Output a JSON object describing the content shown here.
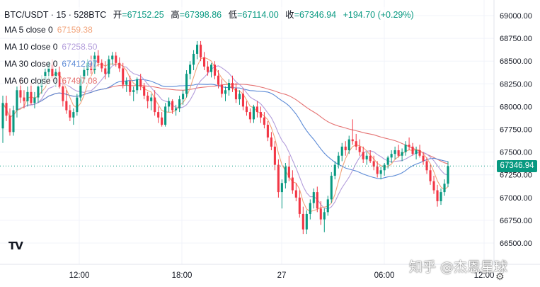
{
  "header": {
    "symbol": "BTC/USDT · 15 · 528BTC",
    "open_label": "开",
    "open_value": "=67152.25",
    "high_label": "高",
    "high_value": "=67398.86",
    "low_label": "低",
    "low_value": "=67114.00",
    "close_label": "收",
    "close_value": "=67346.94",
    "change": "+194.70 (+0.29%)"
  },
  "indicators": [
    {
      "name": "MA 5 close 0",
      "value": "67159.38",
      "color": "#f2a37a"
    },
    {
      "name": "MA 10 close 0",
      "value": "67258.50",
      "color": "#b39ddb"
    },
    {
      "name": "MA 30 close 0",
      "value": "67412.97",
      "color": "#5b8ad6"
    },
    {
      "name": "MA 60 close 0",
      "value": "67497.08",
      "color": "#e57373"
    }
  ],
  "last_price": "67346.94",
  "logo": "TV",
  "watermark": "知乎 @杰恩星球",
  "settings_icon": "gear-icon",
  "colors": {
    "up": "#089981",
    "down": "#f23645",
    "last_price_line": "#089981"
  },
  "chart_data": {
    "type": "candlestick",
    "ylim": [
      66450,
      69100
    ],
    "y_ticks": [
      "69000.00",
      "68750.00",
      "68500.00",
      "68250.00",
      "68000.00",
      "67750.00",
      "67500.00",
      "67250.00",
      "67000.00",
      "66750.00",
      "66500.00"
    ],
    "x_ticks": [
      "12:00",
      "18:00",
      "27",
      "06:00",
      "12:00"
    ],
    "grid": true,
    "candles": [
      [
        67760,
        68120,
        67600,
        68040
      ],
      [
        68040,
        68120,
        67840,
        67900
      ],
      [
        67900,
        67980,
        67680,
        67720
      ],
      [
        67720,
        68010,
        67680,
        67960
      ],
      [
        67960,
        68220,
        67880,
        68180
      ],
      [
        68180,
        68310,
        68040,
        68100
      ],
      [
        68100,
        68180,
        67980,
        68060
      ],
      [
        68060,
        68220,
        68000,
        68160
      ],
      [
        68160,
        68260,
        68020,
        68040
      ],
      [
        68040,
        68160,
        67980,
        68100
      ],
      [
        68100,
        68260,
        68040,
        68220
      ],
      [
        68220,
        68340,
        68140,
        68300
      ],
      [
        68300,
        68420,
        68240,
        68380
      ],
      [
        68380,
        68500,
        68300,
        68460
      ],
      [
        68460,
        68520,
        68280,
        68320
      ],
      [
        68320,
        68420,
        68220,
        68380
      ],
      [
        68380,
        68440,
        68200,
        68220
      ],
      [
        68220,
        68300,
        68000,
        68060
      ],
      [
        68060,
        68180,
        67920,
        67960
      ],
      [
        67960,
        68020,
        67840,
        67880
      ],
      [
        67880,
        67980,
        67800,
        67940
      ],
      [
        67940,
        68140,
        67900,
        68100
      ],
      [
        68100,
        68340,
        68060,
        68300
      ],
      [
        68300,
        68440,
        68260,
        68400
      ],
      [
        68400,
        68520,
        68340,
        68480
      ],
      [
        68480,
        68560,
        68360,
        68400
      ],
      [
        68400,
        68600,
        68360,
        68560
      ],
      [
        68560,
        68620,
        68440,
        68480
      ],
      [
        68480,
        68520,
        68380,
        68420
      ],
      [
        68420,
        68500,
        68300,
        68360
      ],
      [
        68360,
        68560,
        68320,
        68520
      ],
      [
        68520,
        68600,
        68460,
        68560
      ],
      [
        68560,
        68600,
        68440,
        68480
      ],
      [
        68480,
        68540,
        68380,
        68420
      ],
      [
        68420,
        68480,
        68200,
        68240
      ],
      [
        68240,
        68320,
        68160,
        68280
      ],
      [
        68280,
        68340,
        68120,
        68160
      ],
      [
        68160,
        68220,
        68060,
        68180
      ],
      [
        68180,
        68320,
        68140,
        68300
      ],
      [
        68300,
        68360,
        68180,
        68220
      ],
      [
        68220,
        68260,
        68080,
        68120
      ],
      [
        68120,
        68160,
        67980,
        68060
      ],
      [
        68060,
        68140,
        67960,
        68100
      ],
      [
        68100,
        68180,
        67900,
        67940
      ],
      [
        67940,
        68000,
        67820,
        67880
      ],
      [
        67880,
        67940,
        67780,
        67800
      ],
      [
        67800,
        68040,
        67780,
        68000
      ],
      [
        68000,
        68100,
        67940,
        68060
      ],
      [
        68060,
        68080,
        67920,
        67960
      ],
      [
        67960,
        68020,
        67900,
        67980
      ],
      [
        67980,
        68120,
        67940,
        68080
      ],
      [
        68080,
        68180,
        68020,
        68140
      ],
      [
        68140,
        68400,
        68100,
        68360
      ],
      [
        68360,
        68500,
        68300,
        68460
      ],
      [
        68460,
        68620,
        68400,
        68580
      ],
      [
        68580,
        68720,
        68520,
        68680
      ],
      [
        68680,
        68720,
        68500,
        68540
      ],
      [
        68540,
        68600,
        68400,
        68440
      ],
      [
        68440,
        68500,
        68340,
        68380
      ],
      [
        68380,
        68480,
        68320,
        68460
      ],
      [
        68460,
        68500,
        68300,
        68340
      ],
      [
        68340,
        68400,
        68200,
        68240
      ],
      [
        68240,
        68300,
        68100,
        68140
      ],
      [
        68140,
        68220,
        68060,
        68180
      ],
      [
        68180,
        68300,
        68120,
        68260
      ],
      [
        68260,
        68340,
        68160,
        68200
      ],
      [
        68200,
        68260,
        68040,
        68080
      ],
      [
        68080,
        68180,
        68020,
        68140
      ],
      [
        68140,
        68200,
        67960,
        68000
      ],
      [
        68000,
        68060,
        67900,
        67940
      ],
      [
        67940,
        67980,
        67820,
        67860
      ],
      [
        67860,
        68020,
        67820,
        68000
      ],
      [
        68000,
        68060,
        67880,
        67940
      ],
      [
        67940,
        68000,
        67820,
        67880
      ],
      [
        67880,
        67940,
        67760,
        67800
      ],
      [
        67800,
        67840,
        67620,
        67660
      ],
      [
        67660,
        67720,
        67520,
        67560
      ],
      [
        67560,
        67620,
        67300,
        67360
      ],
      [
        67360,
        67420,
        67000,
        67060
      ],
      [
        67060,
        67200,
        66880,
        67160
      ],
      [
        67160,
        67380,
        67100,
        67340
      ],
      [
        67340,
        67460,
        67180,
        67220
      ],
      [
        67220,
        67300,
        67040,
        67080
      ],
      [
        67080,
        67160,
        66960,
        67000
      ],
      [
        67000,
        67080,
        66780,
        66820
      ],
      [
        66820,
        66900,
        66600,
        66650
      ],
      [
        66650,
        66860,
        66600,
        66820
      ],
      [
        66820,
        66980,
        66760,
        66940
      ],
      [
        66940,
        67100,
        66880,
        67060
      ],
      [
        67060,
        67120,
        66840,
        66880
      ],
      [
        66880,
        66960,
        66700,
        66760
      ],
      [
        66760,
        66880,
        66620,
        66840
      ],
      [
        66840,
        67020,
        66800,
        66980
      ],
      [
        66980,
        67280,
        66940,
        67240
      ],
      [
        67240,
        67400,
        67200,
        67360
      ],
      [
        67360,
        67500,
        67320,
        67460
      ],
      [
        67460,
        67600,
        67400,
        67560
      ],
      [
        67560,
        67620,
        67460,
        67520
      ],
      [
        67520,
        67680,
        67480,
        67640
      ],
      [
        67640,
        67860,
        67580,
        67620
      ],
      [
        67620,
        67700,
        67520,
        67560
      ],
      [
        67560,
        67640,
        67460,
        67500
      ],
      [
        67500,
        67560,
        67380,
        67420
      ],
      [
        67420,
        67500,
        67360,
        67460
      ],
      [
        67460,
        67520,
        67380,
        67400
      ],
      [
        67400,
        67460,
        67300,
        67340
      ],
      [
        67340,
        67400,
        67220,
        67260
      ],
      [
        67260,
        67340,
        67200,
        67300
      ],
      [
        67300,
        67380,
        67240,
        67360
      ],
      [
        67360,
        67460,
        67320,
        67440
      ],
      [
        67440,
        67520,
        67380,
        67480
      ],
      [
        67480,
        67560,
        67420,
        67520
      ],
      [
        67520,
        67580,
        67440,
        67460
      ],
      [
        67460,
        67540,
        67400,
        67500
      ],
      [
        67500,
        67620,
        67460,
        67580
      ],
      [
        67580,
        67660,
        67520,
        67560
      ],
      [
        67560,
        67600,
        67460,
        67480
      ],
      [
        67480,
        67560,
        67420,
        67520
      ],
      [
        67520,
        67580,
        67440,
        67460
      ],
      [
        67460,
        67500,
        67360,
        67400
      ],
      [
        67400,
        67440,
        67260,
        67300
      ],
      [
        67300,
        67360,
        67140,
        67180
      ],
      [
        67180,
        67240,
        67040,
        67080
      ],
      [
        67080,
        67140,
        66900,
        66960
      ],
      [
        66960,
        67100,
        66920,
        67060
      ],
      [
        67060,
        67200,
        67020,
        67152
      ],
      [
        67152,
        67399,
        67114,
        67347
      ]
    ]
  }
}
